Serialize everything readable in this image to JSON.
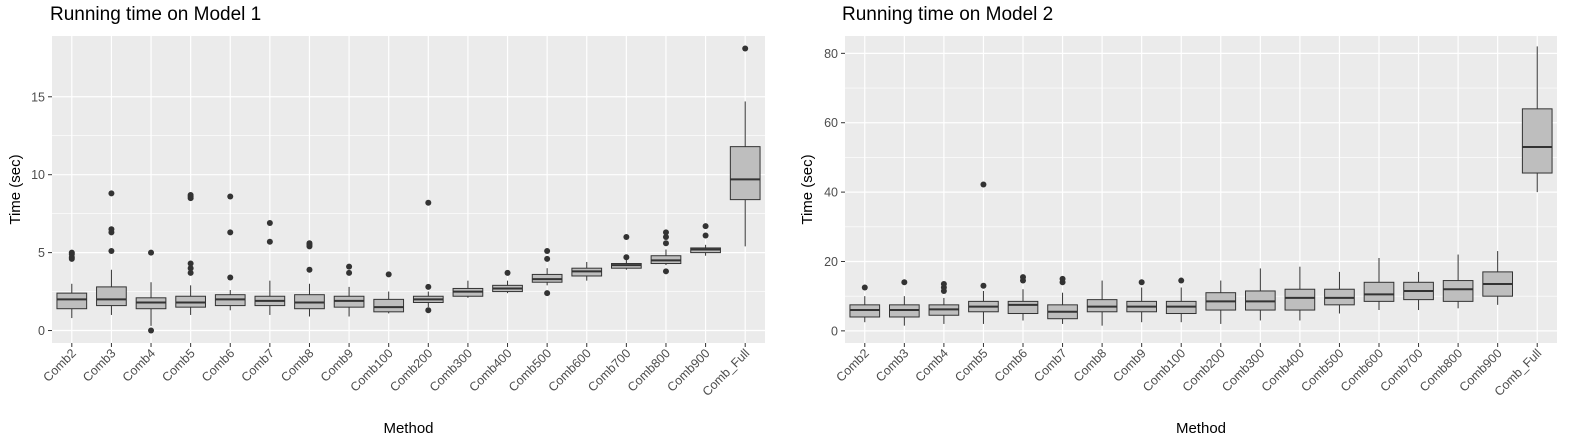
{
  "chart_data": [
    {
      "type": "box",
      "title": "Running time on Model 1",
      "xlabel": "Method",
      "ylabel": "Time (sec)",
      "ylim": [
        -0.8,
        18.9
      ],
      "yticks": [
        0,
        5,
        10,
        15
      ],
      "grid": true,
      "box_color": "#bebebe",
      "categories": [
        "Comb2",
        "Comb3",
        "Comb4",
        "Comb5",
        "Comb6",
        "Comb7",
        "Comb8",
        "Comb9",
        "Comb100",
        "Comb200",
        "Comb300",
        "Comb400",
        "Comb500",
        "Comb600",
        "Comb700",
        "Comb800",
        "Comb900",
        "Comb_Full"
      ],
      "boxes": [
        {
          "low": 0.8,
          "q1": 1.4,
          "median": 2.0,
          "q3": 2.4,
          "high": 3.0,
          "outliers": [
            4.6,
            4.7,
            4.9,
            5.0
          ]
        },
        {
          "low": 1.0,
          "q1": 1.6,
          "median": 2.0,
          "q3": 2.8,
          "high": 3.9,
          "outliers": [
            5.1,
            6.3,
            6.5,
            8.8
          ]
        },
        {
          "low": 0.3,
          "q1": 1.4,
          "median": 1.8,
          "q3": 2.1,
          "high": 3.1,
          "outliers": [
            0.0,
            5.0
          ]
        },
        {
          "low": 1.0,
          "q1": 1.5,
          "median": 1.8,
          "q3": 2.2,
          "high": 2.9,
          "outliers": [
            3.7,
            4.0,
            4.3,
            8.5,
            8.6,
            8.7
          ]
        },
        {
          "low": 1.3,
          "q1": 1.6,
          "median": 2.0,
          "q3": 2.3,
          "high": 2.6,
          "outliers": [
            3.4,
            6.3,
            8.6
          ]
        },
        {
          "low": 1.0,
          "q1": 1.6,
          "median": 1.9,
          "q3": 2.2,
          "high": 3.2,
          "outliers": [
            5.7,
            6.9
          ]
        },
        {
          "low": 0.9,
          "q1": 1.4,
          "median": 1.8,
          "q3": 2.3,
          "high": 3.0,
          "outliers": [
            3.9,
            5.4,
            5.5,
            5.6
          ]
        },
        {
          "low": 0.9,
          "q1": 1.5,
          "median": 1.9,
          "q3": 2.2,
          "high": 2.8,
          "outliers": [
            3.7,
            4.1
          ]
        },
        {
          "low": 1.1,
          "q1": 1.2,
          "median": 1.5,
          "q3": 2.0,
          "high": 2.5,
          "outliers": [
            3.6
          ]
        },
        {
          "low": 1.5,
          "q1": 1.8,
          "median": 2.0,
          "q3": 2.2,
          "high": 2.5,
          "outliers": [
            1.3,
            2.8,
            8.2
          ]
        },
        {
          "low": 2.1,
          "q1": 2.2,
          "median": 2.5,
          "q3": 2.7,
          "high": 3.2,
          "outliers": []
        },
        {
          "low": 2.4,
          "q1": 2.5,
          "median": 2.7,
          "q3": 2.9,
          "high": 3.2,
          "outliers": [
            3.7
          ]
        },
        {
          "low": 2.9,
          "q1": 3.1,
          "median": 3.3,
          "q3": 3.6,
          "high": 4.0,
          "outliers": [
            2.4,
            4.6,
            5.1
          ]
        },
        {
          "low": 3.2,
          "q1": 3.5,
          "median": 3.8,
          "q3": 4.0,
          "high": 4.4,
          "outliers": []
        },
        {
          "low": 3.9,
          "q1": 4.0,
          "median": 4.2,
          "q3": 4.3,
          "high": 4.6,
          "outliers": [
            4.7,
            6.0
          ]
        },
        {
          "low": 4.2,
          "q1": 4.3,
          "median": 4.5,
          "q3": 4.8,
          "high": 5.2,
          "outliers": [
            3.8,
            5.6,
            6.0,
            6.3
          ]
        },
        {
          "low": 4.8,
          "q1": 5.0,
          "median": 5.2,
          "q3": 5.3,
          "high": 5.5,
          "outliers": [
            6.1,
            6.7
          ]
        },
        {
          "low": 5.4,
          "q1": 8.4,
          "median": 9.7,
          "q3": 11.8,
          "high": 14.7,
          "outliers": [
            18.1
          ]
        }
      ]
    },
    {
      "type": "box",
      "title": "Running time on Model 2",
      "xlabel": "Method",
      "ylabel": "Time (sec)",
      "ylim": [
        -3.5,
        85.0
      ],
      "yticks": [
        0,
        20,
        40,
        60,
        80
      ],
      "grid": true,
      "box_color": "#bebebe",
      "categories": [
        "Comb2",
        "Comb3",
        "Comb4",
        "Comb5",
        "Comb6",
        "Comb7",
        "Comb8",
        "Comb9",
        "Comb100",
        "Comb200",
        "Comb300",
        "Comb400",
        "Comb500",
        "Comb600",
        "Comb700",
        "Comb800",
        "Comb900",
        "Comb_Full"
      ],
      "boxes": [
        {
          "low": 2.5,
          "q1": 4.0,
          "median": 6.0,
          "q3": 7.5,
          "high": 10.0,
          "outliers": [
            12.5
          ]
        },
        {
          "low": 1.5,
          "q1": 4.0,
          "median": 6.0,
          "q3": 7.5,
          "high": 10.0,
          "outliers": [
            14.0
          ]
        },
        {
          "low": 2.0,
          "q1": 4.5,
          "median": 6.2,
          "q3": 7.5,
          "high": 9.5,
          "outliers": [
            11.5,
            12.5,
            13.5
          ]
        },
        {
          "low": 2.0,
          "q1": 5.5,
          "median": 7.0,
          "q3": 8.5,
          "high": 11.5,
          "outliers": [
            13.0,
            42.2
          ]
        },
        {
          "low": 3.0,
          "q1": 5.0,
          "median": 7.5,
          "q3": 8.5,
          "high": 12.0,
          "outliers": [
            14.5,
            15.5
          ]
        },
        {
          "low": 2.0,
          "q1": 3.5,
          "median": 5.5,
          "q3": 7.5,
          "high": 11.0,
          "outliers": [
            14.0,
            15.0
          ]
        },
        {
          "low": 1.5,
          "q1": 5.5,
          "median": 7.0,
          "q3": 9.0,
          "high": 14.5,
          "outliers": []
        },
        {
          "low": 2.5,
          "q1": 5.5,
          "median": 7.0,
          "q3": 8.5,
          "high": 12.5,
          "outliers": [
            14.0
          ]
        },
        {
          "low": 2.5,
          "q1": 5.0,
          "median": 7.0,
          "q3": 8.5,
          "high": 12.5,
          "outliers": [
            14.5
          ]
        },
        {
          "low": 2.0,
          "q1": 6.0,
          "median": 8.5,
          "q3": 11.0,
          "high": 14.5,
          "outliers": []
        },
        {
          "low": 3.0,
          "q1": 6.0,
          "median": 8.5,
          "q3": 11.5,
          "high": 18.0,
          "outliers": []
        },
        {
          "low": 3.0,
          "q1": 6.0,
          "median": 9.5,
          "q3": 12.0,
          "high": 18.5,
          "outliers": []
        },
        {
          "low": 5.0,
          "q1": 7.5,
          "median": 9.5,
          "q3": 12.0,
          "high": 17.0,
          "outliers": []
        },
        {
          "low": 6.0,
          "q1": 8.5,
          "median": 10.5,
          "q3": 14.0,
          "high": 21.0,
          "outliers": []
        },
        {
          "low": 6.0,
          "q1": 9.0,
          "median": 11.5,
          "q3": 14.0,
          "high": 17.0,
          "outliers": []
        },
        {
          "low": 6.5,
          "q1": 8.5,
          "median": 12.0,
          "q3": 14.5,
          "high": 22.0,
          "outliers": []
        },
        {
          "low": 7.5,
          "q1": 10.0,
          "median": 13.5,
          "q3": 17.0,
          "high": 23.0,
          "outliers": []
        },
        {
          "low": 40.0,
          "q1": 45.5,
          "median": 53.0,
          "q3": 64.0,
          "high": 82.0,
          "outliers": []
        }
      ]
    }
  ]
}
